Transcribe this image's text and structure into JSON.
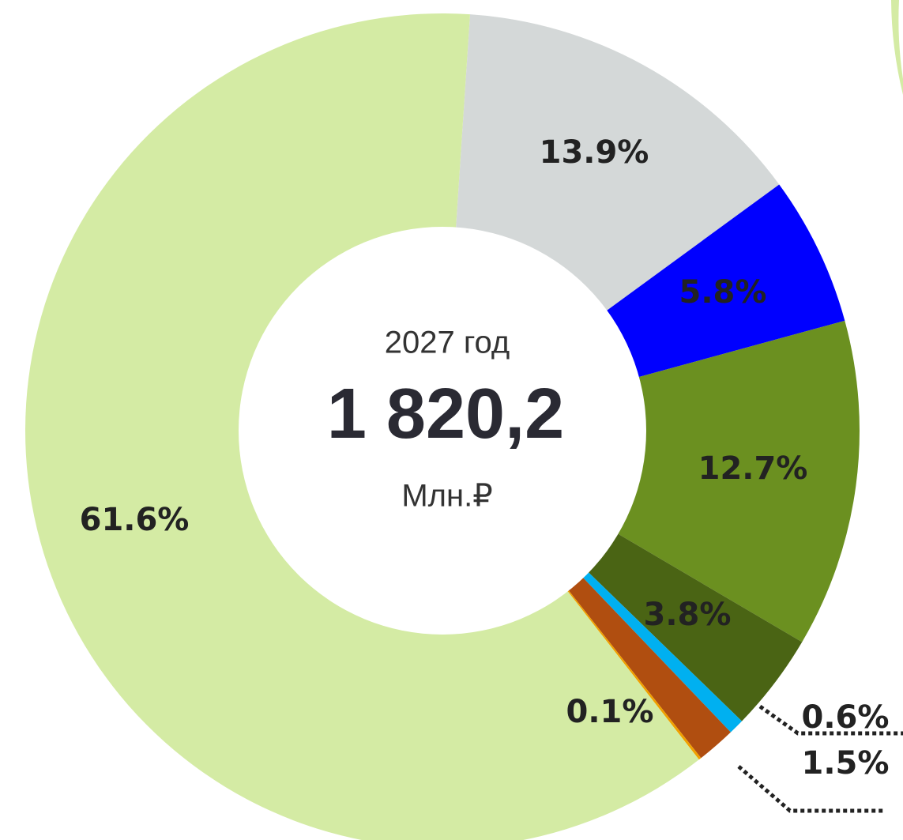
{
  "chart_data": {
    "type": "donut",
    "center_text": {
      "period": "2027 год",
      "total": "1 820,2",
      "unit": "Млн.₽"
    },
    "values": [
      13.9,
      5.8,
      12.7,
      3.8,
      0.6,
      1.5,
      0.1,
      61.6
    ],
    "value_labels": [
      "13.9%",
      "5.8%",
      "12.7%",
      "3.8%",
      "0.6%",
      "1.5%",
      "0.1%",
      "61.6%"
    ],
    "colors": [
      "#d4d8d8",
      "#0000ff",
      "#6b9020",
      "#4a6414",
      "#00b0f0",
      "#b04e10",
      "#f0a000",
      "#d4eba4"
    ]
  }
}
